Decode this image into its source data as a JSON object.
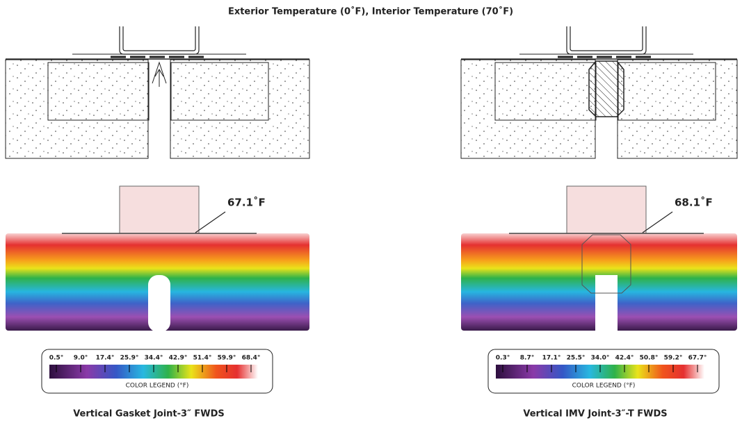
{
  "title": "Exterior Temperature (0˚F), Interior Temperature (70˚F)",
  "panels": [
    {
      "callout": "67.1˚F",
      "legend": {
        "ticks": [
          "0.5°",
          "9.0°",
          "17.4°",
          "25.9°",
          "34.4°",
          "42.9°",
          "51.4°",
          "59.9°",
          "68.4°"
        ],
        "label": "COLOR LEGEND (°F)"
      },
      "caption": "Vertical Gasket Joint-3″ FWDS"
    },
    {
      "callout": "68.1˚F",
      "legend": {
        "ticks": [
          "0.3°",
          "8.7°",
          "17.1°",
          "25.5°",
          "34.0°",
          "42.4°",
          "50.8°",
          "59.2°",
          "67.7°"
        ],
        "label": "COLOR LEGEND (°F)"
      },
      "caption": "Vertical IMV Joint-3″-T FWDS"
    }
  ]
}
